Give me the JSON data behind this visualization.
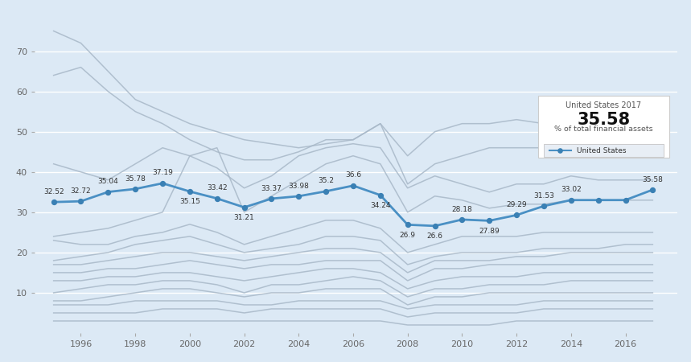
{
  "us_years": [
    1995,
    1996,
    1997,
    1998,
    1999,
    2000,
    2001,
    2002,
    2003,
    2004,
    2005,
    2006,
    2007,
    2008,
    2009,
    2010,
    2011,
    2012,
    2013,
    2014,
    2015,
    2016,
    2017
  ],
  "us_values": [
    32.52,
    32.72,
    35.04,
    35.78,
    37.19,
    35.15,
    33.42,
    31.21,
    33.37,
    33.98,
    35.2,
    36.6,
    34.24,
    26.9,
    26.6,
    28.18,
    27.89,
    29.29,
    31.53,
    33.02,
    33.02,
    33.02,
    35.58
  ],
  "background_color": "#dce9f5",
  "us_line_color": "#4a90c4",
  "us_marker_color": "#3a80b4",
  "gray_line_color": "#a8b8c8",
  "grid_color": "#ffffff",
  "other_countries": [
    [
      75,
      72,
      65,
      58,
      55,
      52,
      50,
      48,
      47,
      46,
      47,
      48,
      52,
      44,
      50,
      52,
      52,
      53,
      52,
      52,
      51,
      51,
      50
    ],
    [
      64,
      66,
      60,
      55,
      52,
      48,
      45,
      43,
      43,
      45,
      48,
      48,
      52,
      37,
      42,
      44,
      46,
      46,
      46,
      46,
      46,
      46,
      46
    ],
    [
      42,
      40,
      38,
      42,
      46,
      44,
      41,
      36,
      39,
      44,
      46,
      47,
      46,
      36,
      39,
      37,
      35,
      37,
      37,
      39,
      38,
      38,
      38
    ],
    [
      24,
      25,
      26,
      28,
      30,
      44,
      46,
      30,
      34,
      38,
      42,
      44,
      42,
      30,
      34,
      33,
      31,
      32,
      32,
      33,
      33,
      33,
      33
    ],
    [
      23,
      22,
      22,
      24,
      25,
      27,
      25,
      22,
      24,
      26,
      28,
      28,
      26,
      20,
      22,
      24,
      24,
      24,
      25,
      25,
      25,
      25,
      25
    ],
    [
      18,
      19,
      20,
      22,
      23,
      24,
      22,
      20,
      21,
      22,
      24,
      24,
      23,
      17,
      19,
      20,
      20,
      20,
      21,
      21,
      21,
      22,
      22
    ],
    [
      17,
      17,
      18,
      19,
      20,
      20,
      19,
      18,
      19,
      20,
      21,
      21,
      20,
      15,
      18,
      18,
      18,
      19,
      19,
      20,
      20,
      20,
      20
    ],
    [
      15,
      15,
      16,
      16,
      17,
      18,
      17,
      16,
      17,
      17,
      18,
      18,
      18,
      13,
      16,
      16,
      17,
      17,
      17,
      17,
      17,
      17,
      17
    ],
    [
      13,
      13,
      14,
      14,
      15,
      15,
      14,
      13,
      14,
      15,
      16,
      16,
      15,
      11,
      13,
      14,
      14,
      14,
      15,
      15,
      15,
      15,
      15
    ],
    [
      10,
      11,
      12,
      12,
      13,
      13,
      12,
      10,
      12,
      12,
      13,
      14,
      13,
      9,
      11,
      11,
      12,
      12,
      12,
      13,
      13,
      13,
      13
    ],
    [
      8,
      8,
      9,
      10,
      11,
      11,
      10,
      9,
      10,
      10,
      11,
      11,
      11,
      7,
      9,
      9,
      10,
      10,
      10,
      10,
      10,
      10,
      10
    ],
    [
      7,
      7,
      7,
      8,
      8,
      8,
      8,
      7,
      7,
      8,
      8,
      8,
      8,
      6,
      7,
      7,
      7,
      7,
      8,
      8,
      8,
      8,
      8
    ],
    [
      5,
      5,
      5,
      5,
      6,
      6,
      6,
      5,
      6,
      6,
      6,
      6,
      6,
      4,
      5,
      5,
      5,
      5,
      6,
      6,
      6,
      6,
      6
    ],
    [
      3,
      3,
      3,
      3,
      3,
      3,
      3,
      3,
      3,
      3,
      3,
      3,
      3,
      2,
      2,
      2,
      2,
      3,
      3,
      3,
      3,
      3,
      3
    ]
  ],
  "xtick_years": [
    1996,
    1998,
    2000,
    2002,
    2004,
    2006,
    2008,
    2010,
    2012,
    2014,
    2016
  ],
  "ytick_values": [
    10,
    20,
    30,
    40,
    50,
    60,
    70
  ],
  "tooltip_title": "United States 2017",
  "tooltip_value": "35.58",
  "tooltip_unit": "% of total financial assets",
  "legend_label": "United States",
  "label_years": [
    1995,
    1996,
    1997,
    1998,
    1999,
    2000,
    2001,
    2002,
    2003,
    2004,
    2005,
    2006,
    2007,
    2008,
    2009,
    2010,
    2011,
    2012,
    2013,
    2014,
    2017
  ],
  "label_values": [
    32.52,
    32.72,
    35.04,
    35.78,
    37.19,
    35.15,
    33.42,
    31.21,
    33.37,
    33.98,
    35.2,
    36.6,
    34.24,
    26.9,
    26.6,
    28.18,
    27.89,
    29.29,
    31.53,
    33.02,
    35.58
  ],
  "label_above": [
    1995,
    1996,
    1997,
    1998,
    1999,
    2001,
    2003,
    2004,
    2005,
    2006,
    2010,
    2012,
    2013,
    2014,
    2017
  ],
  "label_below": [
    2000,
    2002,
    2007,
    2008,
    2009,
    2011
  ]
}
